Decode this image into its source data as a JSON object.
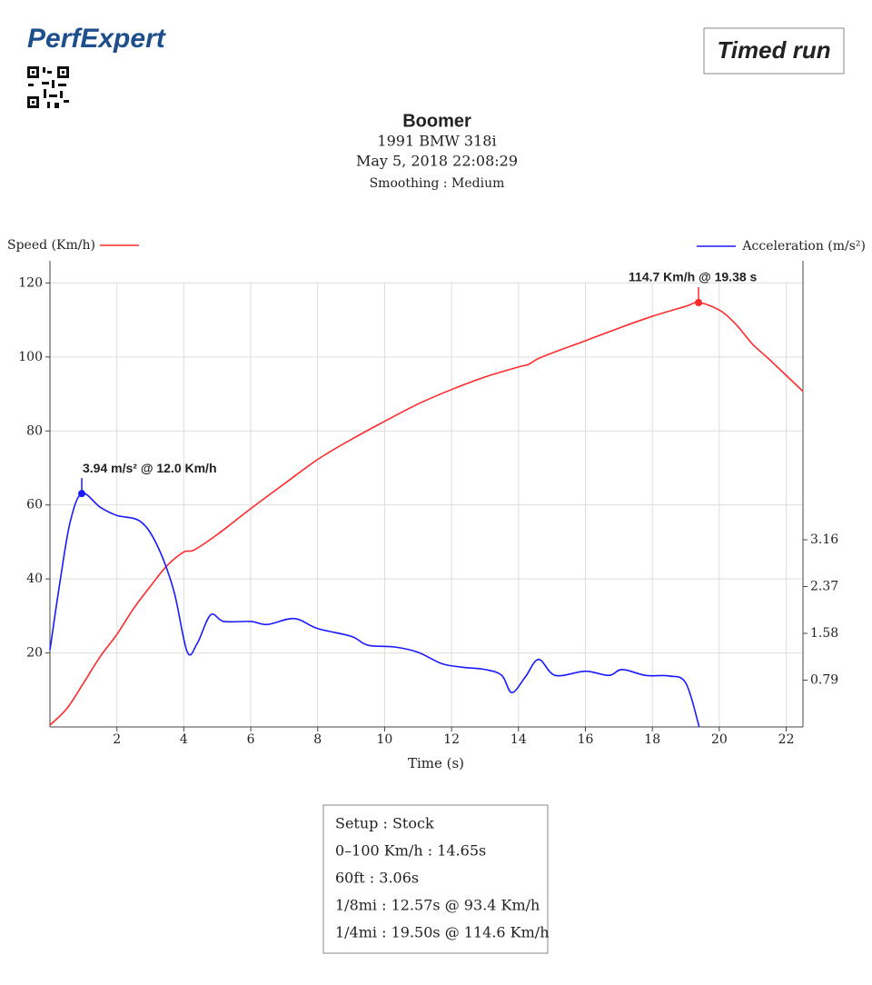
{
  "header": {
    "logo": "PerfExpert",
    "mode": "Timed run"
  },
  "chart_data": {
    "type": "line",
    "title": "Boomer",
    "subtitle": [
      "1991 BMW 318i",
      "May 5, 2018 22:08:29",
      "Smoothing : Medium"
    ],
    "x_label": "Time (s)",
    "xlim": [
      0,
      22.5
    ],
    "xticks": [
      2,
      4,
      6,
      8,
      10,
      12,
      14,
      16,
      18,
      20,
      22
    ],
    "ylim": [
      0,
      126
    ],
    "yticks": [
      20,
      40,
      60,
      80,
      100,
      120
    ],
    "y2lim": [
      0,
      7.87
    ],
    "y2ticks": [
      0.79,
      1.58,
      2.37,
      3.16
    ],
    "grid": true,
    "series": [
      {
        "name": "Speed (Km/h)",
        "color": "#ff2a2a",
        "axis": "y",
        "x": [
          0,
          0.5,
          1,
          1.5,
          2,
          2.5,
          3,
          3.5,
          4,
          4.3,
          5,
          6,
          7,
          8,
          9,
          10,
          11,
          12,
          13,
          14,
          14.3,
          14.7,
          16,
          17,
          18,
          19,
          19.38,
          20,
          20.5,
          21,
          21.5,
          22.5
        ],
        "values": [
          0.5,
          4.9,
          11.8,
          19,
          25,
          32,
          38,
          43.6,
          47.3,
          47.8,
          52,
          59,
          65.7,
          72.3,
          77.7,
          82.6,
          87.3,
          91.2,
          94.6,
          97.3,
          98,
          100,
          104.4,
          107.8,
          111,
          113.7,
          114.7,
          112.7,
          108.8,
          103.4,
          99.3,
          90.7
        ]
      },
      {
        "name": "Acceleration (m/s²)",
        "color": "#1a1aff",
        "axis": "y2",
        "x": [
          0,
          0.3,
          0.6,
          0.95,
          1.5,
          2,
          2.7,
          3.2,
          3.7,
          4.1,
          4.4,
          4.8,
          5.2,
          6,
          6.5,
          7.3,
          8,
          9,
          9.5,
          10.3,
          11,
          11.7,
          12.3,
          13,
          13.5,
          13.8,
          14.2,
          14.6,
          15.1,
          16,
          16.7,
          17.1,
          17.8,
          18.5,
          19,
          19.4
        ],
        "values": [
          1.3,
          2.45,
          3.45,
          3.94,
          3.71,
          3.57,
          3.47,
          3.07,
          2.3,
          1.27,
          1.41,
          1.89,
          1.78,
          1.78,
          1.73,
          1.83,
          1.66,
          1.53,
          1.38,
          1.35,
          1.26,
          1.07,
          1.01,
          0.97,
          0.87,
          0.58,
          0.84,
          1.14,
          0.87,
          0.94,
          0.87,
          0.97,
          0.87,
          0.86,
          0.74,
          0
        ]
      }
    ],
    "annotations": [
      {
        "text": "114.7 Km/h @ 19.38 s",
        "x": 19.38,
        "y": 114.7,
        "axis": "y",
        "color": "#ff2a2a"
      },
      {
        "text": "3.94 m/s² @ 12.0 Km/h",
        "x": 0.95,
        "y": 3.94,
        "axis": "y2",
        "color": "#1a1aff"
      }
    ]
  },
  "setup": [
    "Setup : Stock",
    "0–100 Km/h : 14.65s",
    "60ft : 3.06s",
    "1/8mi : 12.57s @ 93.4 Km/h",
    "1/4mi : 19.50s @ 114.6 Km/h"
  ]
}
